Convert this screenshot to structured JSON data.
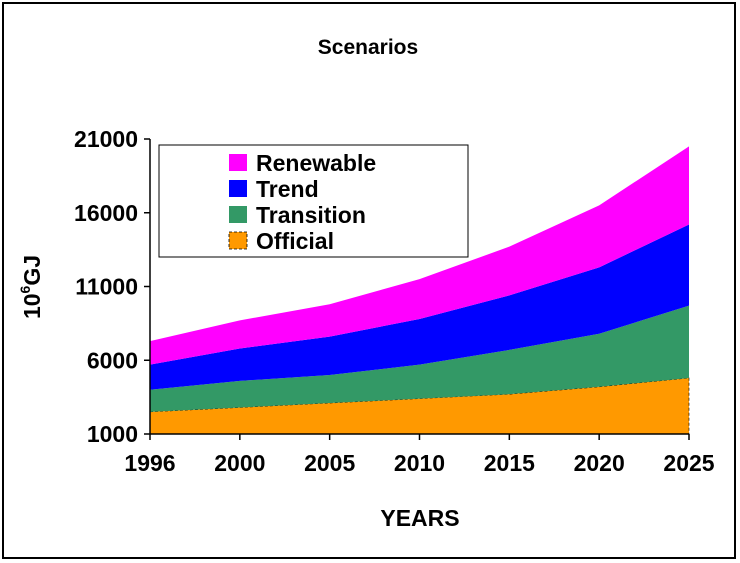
{
  "chart_data": {
    "type": "area",
    "stacked": true,
    "title": "Scenarios",
    "xlabel": "YEARS",
    "ylabel_base": "10",
    "ylabel_exp": "6",
    "ylabel_unit": "GJ",
    "ylim": [
      1000,
      21000
    ],
    "yticks": [
      1000,
      6000,
      11000,
      16000,
      21000
    ],
    "categories": [
      "1996",
      "2000",
      "2005",
      "2010",
      "2015",
      "2020",
      "2025"
    ],
    "series": [
      {
        "name": "Official",
        "color": "#FF9900",
        "values": [
          1500,
          1800,
          2100,
          2400,
          2700,
          3200,
          3800
        ]
      },
      {
        "name": "Transition",
        "color": "#339966",
        "values": [
          1500,
          1800,
          1900,
          2300,
          3000,
          3600,
          4900
        ]
      },
      {
        "name": "Trend",
        "color": "#0000FF",
        "values": [
          1700,
          2200,
          2600,
          3100,
          3700,
          4500,
          5500
        ]
      },
      {
        "name": "Renewable",
        "color": "#FF00FF",
        "values": [
          1600,
          1900,
          2200,
          2700,
          3300,
          4200,
          5300
        ]
      }
    ],
    "legend_order": [
      "Renewable",
      "Trend",
      "Transition",
      "Official"
    ],
    "legend_position": "top-left"
  }
}
